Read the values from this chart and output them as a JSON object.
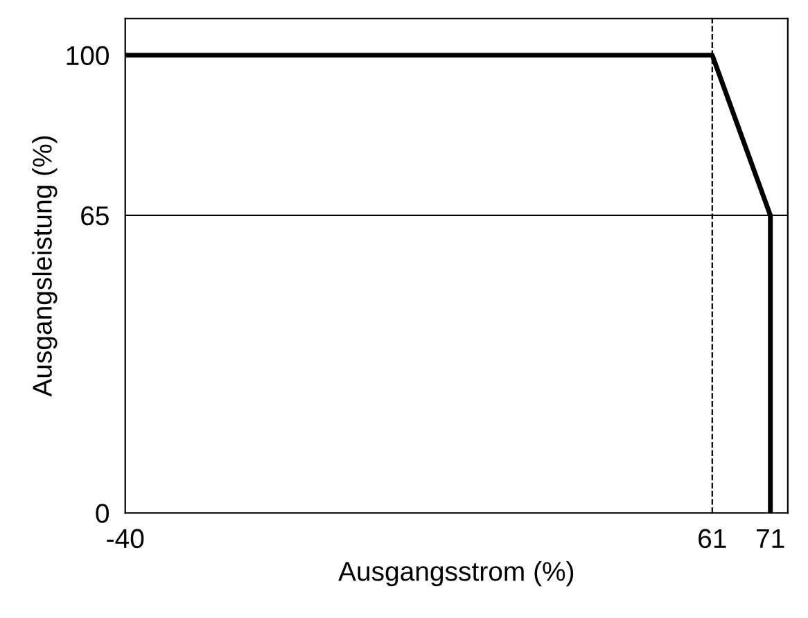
{
  "chart_data": {
    "type": "line",
    "xlabel": "Ausgangsstrom (%)",
    "ylabel": "Ausgangsleistung (%)",
    "x": [
      -40,
      61,
      71,
      71
    ],
    "series": [
      {
        "color": "#000000",
        "values": [
          100,
          100,
          65,
          0
        ]
      }
    ],
    "xlim": [
      -40,
      74
    ],
    "ylim": [
      0,
      108
    ],
    "xticks": [
      -40,
      61,
      71
    ],
    "yticks": [
      0,
      65,
      100
    ],
    "ref_lines": [
      {
        "axis": "x",
        "value": 61,
        "color": "#000000",
        "line_style": "dashed"
      },
      {
        "axis": "y",
        "value": 65,
        "color": "#000000",
        "line_style": "solid"
      }
    ],
    "grid": false,
    "legend": false,
    "line_style": "solid",
    "marker": "none"
  }
}
